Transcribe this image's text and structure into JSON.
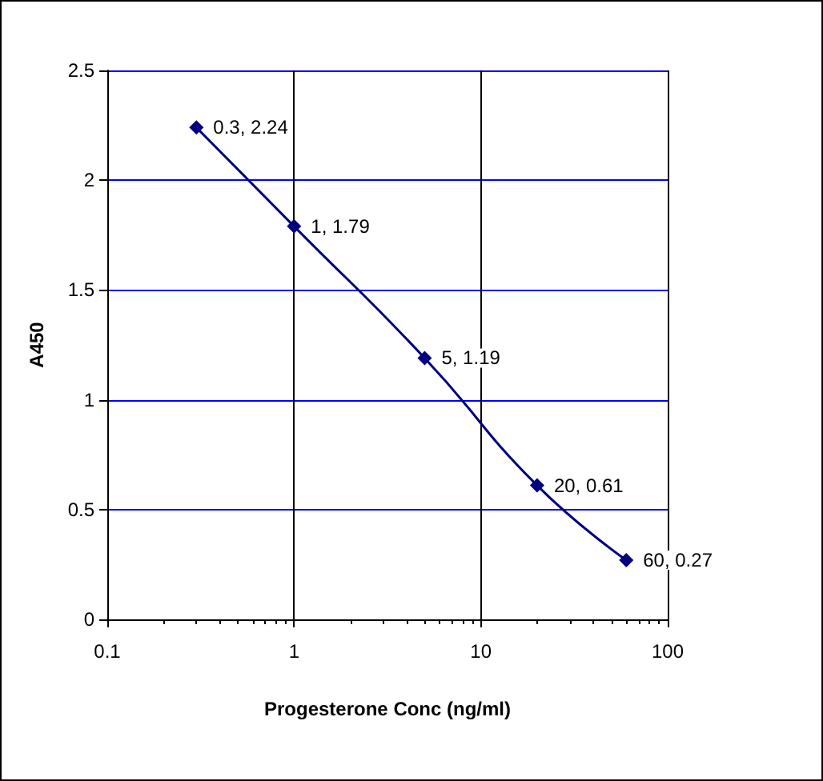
{
  "chart_data": {
    "type": "line",
    "xlabel": "Progesterone Conc (ng/ml)",
    "ylabel": "A450",
    "x": [
      0.3,
      1,
      5,
      20,
      60
    ],
    "series": [
      {
        "color": "#000080",
        "values": [
          2.24,
          1.79,
          1.19,
          0.61,
          0.27
        ],
        "value_labels": [
          "0.3, 2.24",
          "1, 1.79",
          "5, 1.19",
          "20, 0.61",
          "60, 0.27"
        ]
      }
    ],
    "log": "x",
    "xlim": [
      0.1,
      100
    ],
    "xticks": [
      0.1,
      1,
      10,
      100
    ],
    "ylim": [
      0,
      2.5
    ],
    "yticks": [
      0,
      0.5,
      1,
      1.5,
      2,
      2.5
    ],
    "grid": true,
    "marker": "diamond",
    "line_style": "solid"
  }
}
